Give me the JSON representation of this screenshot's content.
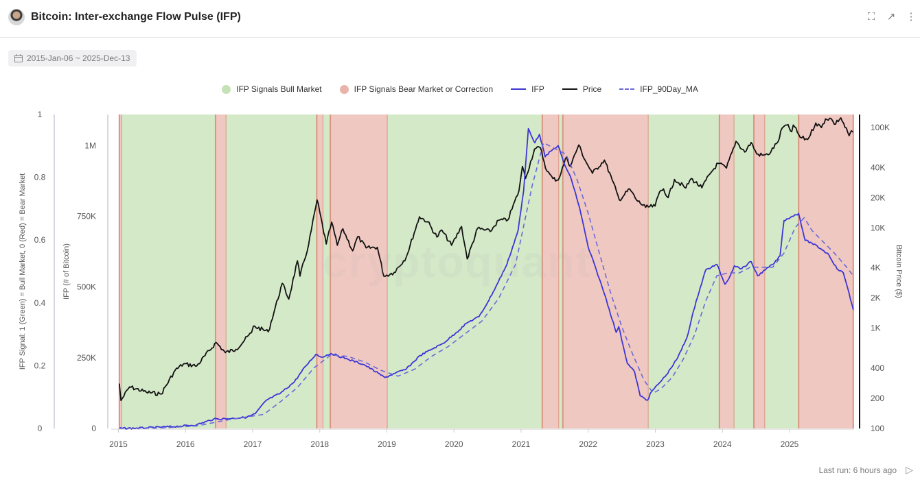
{
  "header": {
    "title": "Bitcoin: Inter-exchange Flow Pulse (IFP)",
    "icons": [
      "expand-icon",
      "external-link-icon",
      "more-vertical-icon"
    ]
  },
  "date_range": "2015-Jan-06 ~ 2025-Dec-13",
  "footer": {
    "last_run": "Last run: 6 hours ago"
  },
  "watermark": "cryptoquant",
  "colors": {
    "bull": "#d4e9c8",
    "bear": "#efc8c1",
    "bear_edge": "#d9957f",
    "ifp": "#3c35d6",
    "price": "#111111",
    "ma": "#6b68d8"
  },
  "chart_data": {
    "type": "line",
    "legend": [
      "IFP Signals Bull Market",
      "IFP Signals Bear Market or Correction",
      "IFP",
      "Price",
      "IFP_90Day_MA"
    ],
    "legend_placement": "top",
    "x_ticks": [
      "2015",
      "2016",
      "2017",
      "2018",
      "2019",
      "2020",
      "2021",
      "2022",
      "2023",
      "2024",
      "2025"
    ],
    "xlim": [
      "2015-01-06",
      "2025-12-13"
    ],
    "axes": {
      "signal": {
        "label": "IFP Signal: 1 (Green) = Bull Market, 0 (Red) = Bear Market",
        "ticks": [
          "0",
          "0.2",
          "0.4",
          "0.6",
          "0.8",
          "1"
        ],
        "ylim": [
          0,
          1
        ]
      },
      "ifp": {
        "label": "IFP (# of Bitcoin)",
        "ticks": [
          "0",
          "250K",
          "500K",
          "750K",
          "1M"
        ],
        "tick_values": [
          0,
          250000,
          500000,
          750000,
          1000000
        ],
        "ylim": [
          0,
          1110000
        ]
      },
      "price": {
        "label": "Bitcoin Price ($)",
        "scale": "log",
        "ticks": [
          "100",
          "200",
          "400",
          "1K",
          "2K",
          "4K",
          "10K",
          "20K",
          "40K",
          "100K"
        ],
        "tick_values": [
          100,
          200,
          400,
          1000,
          2000,
          4000,
          10000,
          20000,
          40000,
          100000
        ],
        "ylim": [
          100,
          135000
        ]
      }
    },
    "signal_periods": [
      {
        "start": "2015-01-06",
        "end": "2015-01-20",
        "signal": 0
      },
      {
        "start": "2015-01-20",
        "end": "2016-06-12",
        "signal": 1
      },
      {
        "start": "2016-06-12",
        "end": "2016-08-10",
        "signal": 0
      },
      {
        "start": "2016-08-10",
        "end": "2017-12-15",
        "signal": 1
      },
      {
        "start": "2017-12-15",
        "end": "2018-01-20",
        "signal": 0
      },
      {
        "start": "2018-01-20",
        "end": "2018-02-28",
        "signal": 1
      },
      {
        "start": "2018-02-28",
        "end": "2019-01-05",
        "signal": 0
      },
      {
        "start": "2019-01-05",
        "end": "2021-04-25",
        "signal": 1
      },
      {
        "start": "2021-04-25",
        "end": "2021-07-25",
        "signal": 0
      },
      {
        "start": "2021-07-25",
        "end": "2021-08-15",
        "signal": 1
      },
      {
        "start": "2021-08-15",
        "end": "2022-11-25",
        "signal": 0
      },
      {
        "start": "2022-11-25",
        "end": "2023-12-15",
        "signal": 1
      },
      {
        "start": "2023-12-15",
        "end": "2024-03-05",
        "signal": 0
      },
      {
        "start": "2024-03-05",
        "end": "2024-06-20",
        "signal": 1
      },
      {
        "start": "2024-06-20",
        "end": "2024-08-20",
        "signal": 0
      },
      {
        "start": "2024-08-20",
        "end": "2025-02-20",
        "signal": 1
      },
      {
        "start": "2025-02-20",
        "end": "2025-12-13",
        "signal": 0
      }
    ],
    "series": [
      {
        "name": "Price",
        "axis": "price",
        "points": [
          [
            "2015-01-06",
            280
          ],
          [
            "2015-01-15",
            190
          ],
          [
            "2015-03-01",
            260
          ],
          [
            "2015-06-01",
            230
          ],
          [
            "2015-08-20",
            220
          ],
          [
            "2015-11-05",
            380
          ],
          [
            "2015-12-20",
            440
          ],
          [
            "2016-03-01",
            420
          ],
          [
            "2016-06-15",
            720
          ],
          [
            "2016-08-05",
            570
          ],
          [
            "2016-10-01",
            615
          ],
          [
            "2016-12-25",
            900
          ],
          [
            "2017-01-05",
            1050
          ],
          [
            "2017-03-25",
            920
          ],
          [
            "2017-06-10",
            2800
          ],
          [
            "2017-07-15",
            1950
          ],
          [
            "2017-09-01",
            4700
          ],
          [
            "2017-09-15",
            3300
          ],
          [
            "2017-11-01",
            6800
          ],
          [
            "2017-12-17",
            19000
          ],
          [
            "2018-02-06",
            6900
          ],
          [
            "2018-03-05",
            11400
          ],
          [
            "2018-04-05",
            6700
          ],
          [
            "2018-05-05",
            9800
          ],
          [
            "2018-06-28",
            5900
          ],
          [
            "2018-07-25",
            8200
          ],
          [
            "2018-09-10",
            6300
          ],
          [
            "2018-11-10",
            6400
          ],
          [
            "2018-12-15",
            3300
          ],
          [
            "2019-02-10",
            3600
          ],
          [
            "2019-04-15",
            5100
          ],
          [
            "2019-06-26",
            12900
          ],
          [
            "2019-08-10",
            11500
          ],
          [
            "2019-09-30",
            8100
          ],
          [
            "2019-10-26",
            9500
          ],
          [
            "2019-12-18",
            6700
          ],
          [
            "2020-02-12",
            10300
          ],
          [
            "2020-03-12",
            4900
          ],
          [
            "2020-05-08",
            9900
          ],
          [
            "2020-07-15",
            9200
          ],
          [
            "2020-09-01",
            11900
          ],
          [
            "2020-10-20",
            12000
          ],
          [
            "2020-12-20",
            23500
          ],
          [
            "2021-01-08",
            41000
          ],
          [
            "2021-01-25",
            31000
          ],
          [
            "2021-03-13",
            61000
          ],
          [
            "2021-04-14",
            63000
          ],
          [
            "2021-05-19",
            37000
          ],
          [
            "2021-06-22",
            31000
          ],
          [
            "2021-07-20",
            30000
          ],
          [
            "2021-09-05",
            51000
          ],
          [
            "2021-09-25",
            41000
          ],
          [
            "2021-11-10",
            67000
          ],
          [
            "2021-12-15",
            47000
          ],
          [
            "2022-01-24",
            35000
          ],
          [
            "2022-03-28",
            47500
          ],
          [
            "2022-05-10",
            30000
          ],
          [
            "2022-06-18",
            19000
          ],
          [
            "2022-08-14",
            24400
          ],
          [
            "2022-09-20",
            19000
          ],
          [
            "2022-11-09",
            16000
          ],
          [
            "2022-12-30",
            16500
          ],
          [
            "2023-01-25",
            23000
          ],
          [
            "2023-02-15",
            24500
          ],
          [
            "2023-03-10",
            20000
          ],
          [
            "2023-04-14",
            30400
          ],
          [
            "2023-06-15",
            25000
          ],
          [
            "2023-07-13",
            31000
          ],
          [
            "2023-09-11",
            25100
          ],
          [
            "2023-10-24",
            34500
          ],
          [
            "2023-12-08",
            44000
          ],
          [
            "2024-01-23",
            39500
          ],
          [
            "2024-03-14",
            73000
          ],
          [
            "2024-05-01",
            57000
          ],
          [
            "2024-06-05",
            71000
          ],
          [
            "2024-07-05",
            54500
          ],
          [
            "2024-08-05",
            53000
          ],
          [
            "2024-09-06",
            53500
          ],
          [
            "2024-10-29",
            72000
          ],
          [
            "2024-11-22",
            99000
          ],
          [
            "2024-12-17",
            106000
          ],
          [
            "2025-01-13",
            91000
          ],
          [
            "2025-01-21",
            106000
          ],
          [
            "2025-02-28",
            80000
          ],
          [
            "2025-04-08",
            76000
          ],
          [
            "2025-05-22",
            111000
          ],
          [
            "2025-06-22",
            100000
          ],
          [
            "2025-07-14",
            122000
          ],
          [
            "2025-08-14",
            123000
          ],
          [
            "2025-09-01",
            108000
          ],
          [
            "2025-10-06",
            125000
          ],
          [
            "2025-11-21",
            83000
          ],
          [
            "2025-12-03",
            93000
          ],
          [
            "2025-12-13",
            90000
          ]
        ]
      },
      {
        "name": "IFP",
        "axis": "ifp",
        "points": [
          [
            "2015-01-06",
            0
          ],
          [
            "2015-06-01",
            2000
          ],
          [
            "2015-12-01",
            8000
          ],
          [
            "2016-03-01",
            13000
          ],
          [
            "2016-06-01",
            33000
          ],
          [
            "2016-09-01",
            35000
          ],
          [
            "2016-12-01",
            40000
          ],
          [
            "2017-01-15",
            52000
          ],
          [
            "2017-03-15",
            100000
          ],
          [
            "2017-06-01",
            125000
          ],
          [
            "2017-08-15",
            165000
          ],
          [
            "2017-10-15",
            220000
          ],
          [
            "2017-12-10",
            262000
          ],
          [
            "2018-01-10",
            252000
          ],
          [
            "2018-03-01",
            265000
          ],
          [
            "2018-06-01",
            245000
          ],
          [
            "2018-09-01",
            225000
          ],
          [
            "2018-11-15",
            195000
          ],
          [
            "2018-12-20",
            180000
          ],
          [
            "2019-02-15",
            195000
          ],
          [
            "2019-04-15",
            210000
          ],
          [
            "2019-06-30",
            258000
          ],
          [
            "2019-09-01",
            280000
          ],
          [
            "2019-11-01",
            300000
          ],
          [
            "2020-01-15",
            340000
          ],
          [
            "2020-03-15",
            375000
          ],
          [
            "2020-05-15",
            395000
          ],
          [
            "2020-07-01",
            445000
          ],
          [
            "2020-08-15",
            500000
          ],
          [
            "2020-10-15",
            580000
          ],
          [
            "2020-12-15",
            700000
          ],
          [
            "2021-01-15",
            840000
          ],
          [
            "2021-02-10",
            1060000
          ],
          [
            "2021-03-15",
            1010000
          ],
          [
            "2021-04-10",
            1040000
          ],
          [
            "2021-05-10",
            960000
          ],
          [
            "2021-06-10",
            980000
          ],
          [
            "2021-07-20",
            1000000
          ],
          [
            "2021-08-20",
            940000
          ],
          [
            "2021-10-01",
            880000
          ],
          [
            "2021-11-15",
            780000
          ],
          [
            "2022-01-01",
            640000
          ],
          [
            "2022-02-15",
            560000
          ],
          [
            "2022-04-01",
            470000
          ],
          [
            "2022-06-01",
            340000
          ],
          [
            "2022-06-15",
            360000
          ],
          [
            "2022-08-01",
            230000
          ],
          [
            "2022-09-10",
            200000
          ],
          [
            "2022-10-10",
            115000
          ],
          [
            "2022-11-20",
            100000
          ],
          [
            "2022-12-10",
            130000
          ],
          [
            "2023-01-15",
            155000
          ],
          [
            "2023-03-01",
            190000
          ],
          [
            "2023-05-01",
            250000
          ],
          [
            "2023-06-20",
            320000
          ],
          [
            "2023-08-10",
            450000
          ],
          [
            "2023-10-01",
            560000
          ],
          [
            "2023-12-01",
            580000
          ],
          [
            "2024-01-15",
            510000
          ],
          [
            "2024-02-01",
            525000
          ],
          [
            "2024-03-05",
            575000
          ],
          [
            "2024-04-15",
            565000
          ],
          [
            "2024-06-05",
            590000
          ],
          [
            "2024-07-10",
            540000
          ],
          [
            "2024-08-20",
            560000
          ],
          [
            "2024-10-10",
            585000
          ],
          [
            "2024-11-10",
            610000
          ],
          [
            "2024-12-01",
            735000
          ],
          [
            "2025-01-15",
            750000
          ],
          [
            "2025-02-20",
            760000
          ],
          [
            "2025-03-25",
            665000
          ],
          [
            "2025-05-01",
            655000
          ],
          [
            "2025-06-20",
            635000
          ],
          [
            "2025-08-01",
            615000
          ],
          [
            "2025-09-15",
            565000
          ],
          [
            "2025-10-20",
            550000
          ],
          [
            "2025-11-20",
            480000
          ],
          [
            "2025-12-13",
            420000
          ]
        ]
      },
      {
        "name": "IFP_90Day_MA",
        "axis": "ifp",
        "points": [
          [
            "2015-01-06",
            0
          ],
          [
            "2015-09-01",
            2000
          ],
          [
            "2016-03-01",
            9000
          ],
          [
            "2016-09-01",
            32000
          ],
          [
            "2017-03-01",
            50000
          ],
          [
            "2017-06-01",
            95000
          ],
          [
            "2017-09-01",
            145000
          ],
          [
            "2017-12-01",
            215000
          ],
          [
            "2018-03-01",
            260000
          ],
          [
            "2018-06-01",
            255000
          ],
          [
            "2018-09-01",
            235000
          ],
          [
            "2018-12-01",
            205000
          ],
          [
            "2019-03-01",
            185000
          ],
          [
            "2019-06-01",
            210000
          ],
          [
            "2019-09-01",
            255000
          ],
          [
            "2019-12-01",
            290000
          ],
          [
            "2020-03-01",
            335000
          ],
          [
            "2020-06-01",
            380000
          ],
          [
            "2020-09-01",
            460000
          ],
          [
            "2020-12-01",
            580000
          ],
          [
            "2021-03-01",
            860000
          ],
          [
            "2021-05-01",
            1010000
          ],
          [
            "2021-07-01",
            990000
          ],
          [
            "2021-09-01",
            970000
          ],
          [
            "2021-11-01",
            880000
          ],
          [
            "2022-01-01",
            760000
          ],
          [
            "2022-03-01",
            620000
          ],
          [
            "2022-05-01",
            480000
          ],
          [
            "2022-07-01",
            360000
          ],
          [
            "2022-09-01",
            260000
          ],
          [
            "2022-11-01",
            170000
          ],
          [
            "2022-12-20",
            125000
          ],
          [
            "2023-02-01",
            140000
          ],
          [
            "2023-04-01",
            180000
          ],
          [
            "2023-06-01",
            245000
          ],
          [
            "2023-08-01",
            330000
          ],
          [
            "2023-10-01",
            450000
          ],
          [
            "2023-12-01",
            540000
          ],
          [
            "2024-02-01",
            550000
          ],
          [
            "2024-04-01",
            550000
          ],
          [
            "2024-06-01",
            570000
          ],
          [
            "2024-08-01",
            570000
          ],
          [
            "2024-10-01",
            570000
          ],
          [
            "2024-12-01",
            620000
          ],
          [
            "2025-02-01",
            710000
          ],
          [
            "2025-03-20",
            745000
          ],
          [
            "2025-05-01",
            700000
          ],
          [
            "2025-07-01",
            660000
          ],
          [
            "2025-09-01",
            620000
          ],
          [
            "2025-11-01",
            575000
          ],
          [
            "2025-12-13",
            540000
          ]
        ]
      }
    ]
  }
}
